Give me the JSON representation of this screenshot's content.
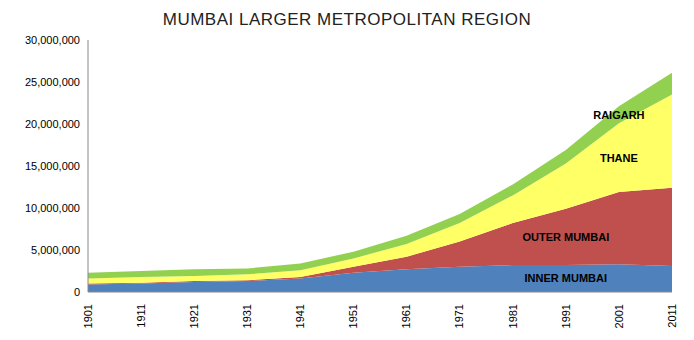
{
  "chart_data": {
    "type": "area",
    "title": "MUMBAI LARGER METROPOLITAN REGION",
    "stacked": true,
    "grid": false,
    "categories": [
      "1901",
      "1911",
      "1921",
      "1931",
      "1941",
      "1951",
      "1961",
      "1971",
      "1981",
      "1991",
      "2001",
      "2011"
    ],
    "series": [
      {
        "name": "INNER MUMBAI",
        "color": "#4f81bd",
        "values": [
          900000,
          1000000,
          1200000,
          1300000,
          1600000,
          2300000,
          2700000,
          3000000,
          3200000,
          3200000,
          3300000,
          3100000
        ]
      },
      {
        "name": "OUTER MUMBAI",
        "color": "#c0504d",
        "values": [
          100000,
          100000,
          100000,
          100000,
          200000,
          700000,
          1500000,
          3000000,
          5000000,
          6700000,
          8600000,
          9300000
        ]
      },
      {
        "name": "THANE",
        "color": "#ffff66",
        "values": [
          600000,
          700000,
          600000,
          700000,
          800000,
          1000000,
          1500000,
          2200000,
          3300000,
          5400000,
          8200000,
          11100000
        ]
      },
      {
        "name": "RAIGARH",
        "color": "#92d050",
        "values": [
          700000,
          700000,
          800000,
          700000,
          800000,
          800000,
          1000000,
          1100000,
          1300000,
          1600000,
          2000000,
          2600000
        ]
      }
    ],
    "ylim": [
      0,
      30000000
    ],
    "yticks": [
      0,
      {
        "value": 5000000,
        "label": "5,000,000"
      },
      {
        "value": 10000000,
        "label": "10,000,000"
      },
      {
        "value": 15000000,
        "label": "15,000,000"
      },
      {
        "value": 20000000,
        "label": "20,000,000"
      },
      {
        "value": 25000000,
        "label": "25,000,000"
      },
      {
        "value": 30000000,
        "label": "30,000,000"
      }
    ]
  }
}
